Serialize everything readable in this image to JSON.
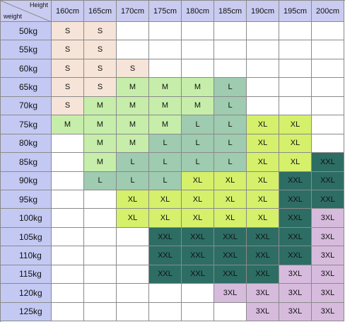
{
  "table": {
    "corner_top": "Height",
    "corner_bottom": "weight",
    "columns": [
      "160cm",
      "165cm",
      "170cm",
      "175cm",
      "180cm",
      "185cm",
      "190cm",
      "195cm",
      "200cm"
    ],
    "size_colors": {
      "S": "#f6e4d8",
      "M": "#c6eeaa",
      "L": "#9fcbb1",
      "XL": "#d5f06b",
      "XXL": "#2d6d64",
      "3XL": "#d7bbdd"
    },
    "rows": [
      {
        "label": "50kg",
        "cells": [
          "S",
          "S",
          null,
          null,
          null,
          null,
          null,
          null,
          null
        ]
      },
      {
        "label": "55kg",
        "cells": [
          "S",
          "S",
          null,
          null,
          null,
          null,
          null,
          null,
          null
        ]
      },
      {
        "label": "60kg",
        "cells": [
          "S",
          "S",
          "S",
          null,
          null,
          null,
          null,
          null,
          null
        ]
      },
      {
        "label": "65kg",
        "cells": [
          "S",
          "S",
          "M",
          "M",
          "M",
          "L",
          null,
          null,
          null
        ]
      },
      {
        "label": "70kg",
        "cells": [
          "S",
          "M",
          "M",
          "M",
          "M",
          "L",
          null,
          null,
          null
        ]
      },
      {
        "label": "75kg",
        "cells": [
          "M",
          "M",
          "M",
          "M",
          "L",
          "L",
          "XL",
          "XL",
          null
        ]
      },
      {
        "label": "80kg",
        "cells": [
          null,
          "M",
          "M",
          "L",
          "L",
          "L",
          "XL",
          "XL",
          null
        ]
      },
      {
        "label": "85kg",
        "cells": [
          null,
          "M",
          "L",
          "L",
          "L",
          "L",
          "XL",
          "XL",
          "XXL"
        ]
      },
      {
        "label": "90kg",
        "cells": [
          null,
          "L",
          "L",
          "L",
          "XL",
          "XL",
          "XL",
          "XXL",
          "XXL"
        ]
      },
      {
        "label": "95kg",
        "cells": [
          null,
          null,
          "XL",
          "XL",
          "XL",
          "XL",
          "XL",
          "XXL",
          "XXL"
        ]
      },
      {
        "label": "100kg",
        "cells": [
          null,
          null,
          "XL",
          "XL",
          "XL",
          "XL",
          "XL",
          "XXL",
          "3XL"
        ]
      },
      {
        "label": "105kg",
        "cells": [
          null,
          null,
          null,
          "XXL",
          "XXL",
          "XXL",
          "XXL",
          "XXL",
          "3XL"
        ]
      },
      {
        "label": "110kg",
        "cells": [
          null,
          null,
          null,
          "XXL",
          "XXL",
          "XXL",
          "XXL",
          "XXL",
          "3XL"
        ]
      },
      {
        "label": "115kg",
        "cells": [
          null,
          null,
          null,
          "XXL",
          "XXL",
          "XXL",
          "XXL",
          "3XL",
          "3XL"
        ]
      },
      {
        "label": "120kg",
        "cells": [
          null,
          null,
          null,
          null,
          null,
          "3XL",
          "3XL",
          "3XL",
          "3XL"
        ]
      },
      {
        "label": "125kg",
        "cells": [
          null,
          null,
          null,
          null,
          null,
          null,
          "3XL",
          "3XL",
          "3XL"
        ]
      }
    ]
  }
}
